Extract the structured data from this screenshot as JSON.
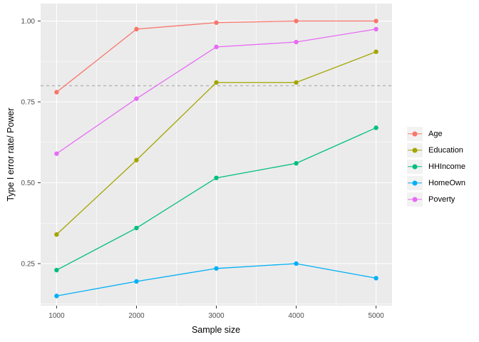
{
  "chart_data": {
    "type": "line",
    "title": "",
    "xlabel": "Sample size",
    "ylabel": "Type I error rate/ Power",
    "x": [
      1000,
      2000,
      3000,
      4000,
      5000
    ],
    "x_tick_labels": [
      "1000",
      "2000",
      "3000",
      "4000",
      "5000"
    ],
    "y_ticks": [
      0.25,
      0.5,
      0.75,
      1.0
    ],
    "y_tick_labels": [
      "0.25",
      "0.50",
      "0.75",
      "1.00"
    ],
    "xlim": [
      800,
      5200
    ],
    "ylim": [
      0.12,
      1.054
    ],
    "minor_x": [
      1500,
      2500,
      3500,
      4500
    ],
    "minor_y": [
      0.125,
      0.375,
      0.625,
      0.875
    ],
    "grid": "on",
    "legend_position": "right",
    "reference_line": {
      "y": 0.8,
      "style": "dashed",
      "color": "#a9a9a9"
    },
    "series": [
      {
        "name": "Age",
        "color": "#F8766D",
        "values": [
          0.78,
          0.975,
          0.995,
          1.0,
          1.0
        ]
      },
      {
        "name": "Education",
        "color": "#A3A500",
        "values": [
          0.34,
          0.57,
          0.81,
          0.81,
          0.905
        ]
      },
      {
        "name": "HHIncome",
        "color": "#00BF7D",
        "values": [
          0.23,
          0.36,
          0.515,
          0.56,
          0.67
        ]
      },
      {
        "name": "HomeOwn",
        "color": "#00B0F6",
        "values": [
          0.15,
          0.195,
          0.235,
          0.25,
          0.205
        ]
      },
      {
        "name": "Poverty",
        "color": "#E76BF3",
        "values": [
          0.59,
          0.76,
          0.92,
          0.935,
          0.975
        ]
      }
    ]
  },
  "colors": {
    "page_bg": "#ffffff",
    "panel_bg": "#EBEBEB",
    "grid": "#FFFFFF",
    "tick_mark": "#333333",
    "tick_label": "#4D4D4D",
    "axis_title": "#000000",
    "legend_key_bg": "#F2F2F2"
  }
}
